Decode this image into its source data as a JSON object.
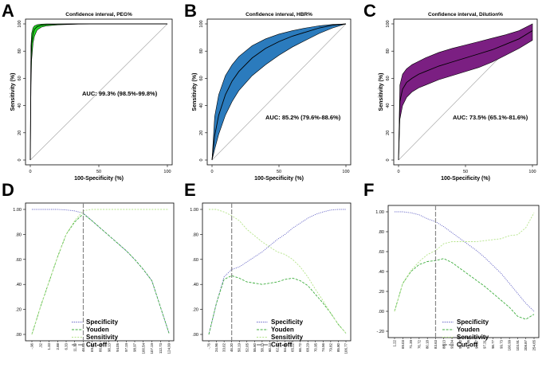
{
  "chart_data": [
    {
      "panel": "A",
      "type": "line",
      "title": "Confidence interval,  PEG%",
      "xlabel": "100-Specificity (%)",
      "ylabel": "Sensitivity (%)",
      "xlim": [
        0,
        100
      ],
      "ylim": [
        0,
        100
      ],
      "xticks": [
        "0",
        "50",
        "100"
      ],
      "yticks": [
        "0",
        "20",
        "40",
        "60",
        "80",
        "100"
      ],
      "auc_text": "AUC: 99.3% (98.5%-99.8%)",
      "band_color": "#22dd22",
      "curve_x": [
        0,
        0.5,
        1,
        2,
        3,
        5,
        8,
        12,
        20,
        35,
        60,
        100
      ],
      "curve_y": [
        0,
        72,
        86,
        93,
        96,
        98,
        99,
        99.5,
        99.8,
        100,
        100,
        100
      ],
      "upper_y": [
        0,
        84,
        93,
        97,
        98.5,
        99.4,
        99.8,
        100,
        100,
        100,
        100,
        100
      ],
      "lower_y": [
        0,
        55,
        74,
        86,
        91,
        95.5,
        97.6,
        98.6,
        99.3,
        99.8,
        100,
        100
      ]
    },
    {
      "panel": "B",
      "type": "line",
      "title": "Confidence interval,  HBR%",
      "xlabel": "100-Specificity (%)",
      "ylabel": "Sensitivity (%)",
      "xlim": [
        0,
        100
      ],
      "ylim": [
        0,
        100
      ],
      "xticks": [
        "0",
        "50",
        "100"
      ],
      "yticks": [
        "0",
        "20",
        "40",
        "60",
        "80",
        "100"
      ],
      "auc_text": "AUC: 85.2% (79.6%-88.6%)",
      "band_color": "#2b7bbd",
      "curve_x": [
        0,
        2,
        5,
        10,
        15,
        20,
        30,
        40,
        50,
        60,
        70,
        80,
        90,
        100
      ],
      "curve_y": [
        0,
        18,
        33,
        48,
        58,
        65,
        75,
        82,
        87,
        91,
        94,
        97,
        99,
        100
      ],
      "upper_y": [
        0,
        32,
        48,
        62,
        70,
        76,
        84,
        89,
        92.5,
        95,
        97,
        98.6,
        99.6,
        100
      ],
      "lower_y": [
        0,
        8,
        19,
        33,
        43,
        51,
        62,
        70,
        77,
        83,
        88,
        93,
        97,
        100
      ]
    },
    {
      "panel": "C",
      "type": "line",
      "title": "Confidence interval,  Dilution%",
      "xlabel": "100-Specificity (%)",
      "ylabel": "Sensitivity (%)",
      "xlim": [
        0,
        100
      ],
      "ylim": [
        0,
        100
      ],
      "xticks": [
        "0",
        "50",
        "100"
      ],
      "yticks": [
        "0",
        "20",
        "40",
        "60",
        "80",
        "100"
      ],
      "auc_text": "AUC: 73.5% (65.1%-81.6%)",
      "band_color": "#7b1f82",
      "curve_x": [
        0,
        1,
        3,
        6,
        10,
        15,
        20,
        30,
        40,
        50,
        60,
        70,
        80,
        90,
        100
      ],
      "curve_y": [
        0,
        43,
        52,
        57,
        60,
        63,
        65,
        69,
        72,
        75,
        78,
        81,
        85,
        89,
        95
      ],
      "upper_y": [
        0,
        55,
        63,
        67,
        70,
        72.5,
        75,
        79,
        82,
        84.5,
        87,
        89.5,
        92,
        95,
        100
      ],
      "lower_y": [
        0,
        30,
        40,
        46,
        50,
        53,
        55,
        59,
        62,
        65,
        68,
        72,
        77,
        82,
        88
      ]
    },
    {
      "panel": "D",
      "type": "line",
      "yticks": [
        ".00",
        ".20",
        ".40",
        ".60",
        ".80",
        "1.00"
      ],
      "ylim": [
        0,
        1
      ],
      "cutoff_index": 6,
      "x_tick_labels": [
        "-.96",
        ".32",
        "1.33",
        "2.88",
        "6.33",
        "11.30",
        "46.85",
        "69.67",
        "86.01",
        "90.13",
        "94.05",
        "97.19",
        "98.97",
        "100.54",
        "107.19",
        "112.73",
        "124.99"
      ],
      "series": [
        {
          "name": "Specificity",
          "color": "#6a6ac8",
          "values": [
            1,
            1,
            1,
            1,
            0.996,
            0.988,
            0.97,
            0.91,
            0.85,
            0.79,
            0.73,
            0.67,
            0.6,
            0.52,
            0.43,
            0.22,
            0.01
          ]
        },
        {
          "name": "Youden",
          "color": "#3fae3f",
          "values": [
            0,
            0.22,
            0.42,
            0.62,
            0.8,
            0.9,
            0.965,
            0.91,
            0.85,
            0.79,
            0.73,
            0.67,
            0.6,
            0.52,
            0.43,
            0.22,
            0.01
          ]
        },
        {
          "name": "Sensitivity",
          "color": "#b5e48a",
          "values": [
            0,
            0.22,
            0.42,
            0.62,
            0.8,
            0.91,
            0.99,
            1,
            1,
            1,
            1,
            1,
            1,
            1,
            1,
            1,
            1
          ]
        }
      ],
      "legend": [
        "Specificity",
        "Youden",
        "Sensitivity",
        "Cut-off"
      ]
    },
    {
      "panel": "E",
      "type": "line",
      "yticks": [
        ".00",
        ".20",
        ".40",
        ".60",
        ".80",
        "1.00"
      ],
      "ylim": [
        0,
        1
      ],
      "cutoff_index": 3,
      "x_tick_labels": [
        "-.76",
        "24.96",
        "33.02",
        "46.20",
        "50.19",
        "52.05",
        "55.60",
        "58.13",
        "60.13",
        "62.16",
        "64.56",
        "65.22",
        "66.72",
        "68.29",
        "70.95",
        "74.56",
        "79.82",
        "85.80",
        "106.77"
      ],
      "series": [
        {
          "name": "Specificity",
          "color": "#6a6ac8",
          "values": [
            0,
            0.25,
            0.46,
            0.52,
            0.54,
            0.58,
            0.62,
            0.66,
            0.71,
            0.76,
            0.8,
            0.85,
            0.89,
            0.93,
            0.96,
            0.98,
            0.995,
            1,
            1
          ]
        },
        {
          "name": "Youden",
          "color": "#3fae3f",
          "values": [
            0,
            0.25,
            0.44,
            0.47,
            0.45,
            0.42,
            0.41,
            0.4,
            0.41,
            0.42,
            0.44,
            0.45,
            0.43,
            0.39,
            0.32,
            0.25,
            0.17,
            0.08,
            0.01
          ]
        },
        {
          "name": "Sensitivity",
          "color": "#b5e48a",
          "values": [
            1,
            1,
            0.98,
            0.95,
            0.91,
            0.84,
            0.79,
            0.74,
            0.7,
            0.66,
            0.64,
            0.6,
            0.54,
            0.46,
            0.36,
            0.27,
            0.17,
            0.08,
            0.01
          ]
        }
      ],
      "legend": [
        "Specificity",
        "Youden",
        "Sensitivity",
        "Cut-off"
      ]
    },
    {
      "panel": "F",
      "type": "line",
      "yticks": [
        "-.20",
        ".00",
        ".20",
        ".40",
        ".60",
        ".80",
        "1.00"
      ],
      "ylim": [
        -0.2,
        1
      ],
      "cutoff_index": 5,
      "x_tick_labels": [
        "1.22",
        "69.03",
        "71.39",
        "76.72",
        "80.18",
        "83.63",
        "88.13",
        "91.34",
        "93.82",
        "94.95",
        "96.37",
        "97.31",
        "98.77",
        "99.73",
        "100.99",
        "103.91",
        "208.87",
        "254.65"
      ],
      "series": [
        {
          "name": "Specificity",
          "color": "#6a6ac8",
          "values": [
            1,
            1,
            0.99,
            0.97,
            0.93,
            0.9,
            0.85,
            0.79,
            0.73,
            0.67,
            0.61,
            0.54,
            0.46,
            0.38,
            0.28,
            0.18,
            0.08,
            0.0
          ]
        },
        {
          "name": "Youden",
          "color": "#3fae3f",
          "values": [
            0,
            0.28,
            0.4,
            0.47,
            0.5,
            0.51,
            0.53,
            0.49,
            0.43,
            0.37,
            0.31,
            0.25,
            0.18,
            0.11,
            0.04,
            -0.05,
            -0.08,
            -0.03
          ]
        },
        {
          "name": "Sensitivity",
          "color": "#b5e48a",
          "values": [
            0,
            0.28,
            0.41,
            0.5,
            0.57,
            0.61,
            0.68,
            0.7,
            0.7,
            0.7,
            0.7,
            0.71,
            0.72,
            0.73,
            0.76,
            0.77,
            0.84,
            0.99
          ]
        }
      ],
      "legend": [
        "Specificity",
        "Youden",
        "Sensitivity",
        "Cut-off"
      ]
    }
  ]
}
